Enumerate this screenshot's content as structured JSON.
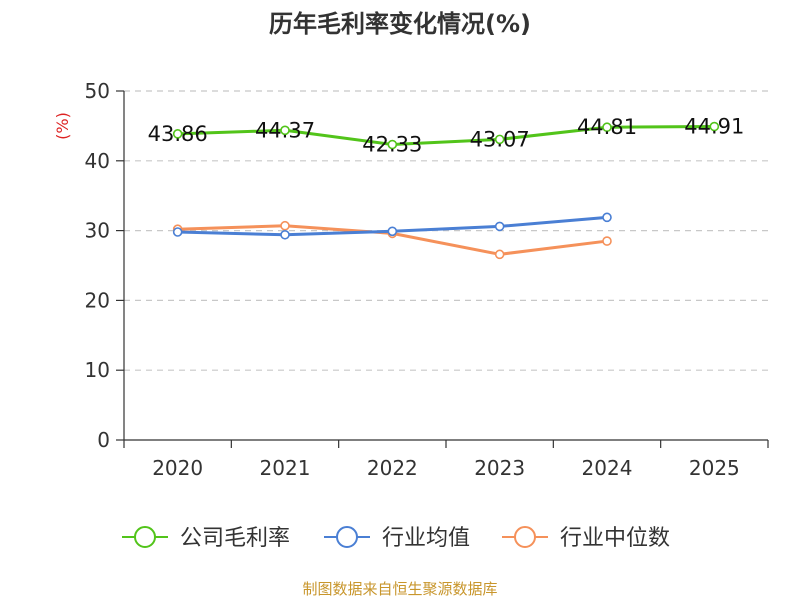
{
  "chart_data": {
    "type": "line",
    "title": "历年毛利率变化情况(%)",
    "ylabel": "(%)",
    "xlabel": "",
    "categories": [
      "2020",
      "2021",
      "2022",
      "2023",
      "2024",
      "2025"
    ],
    "ylim": [
      0,
      50
    ],
    "yticks": [
      0,
      10,
      20,
      30,
      40,
      50
    ],
    "grid": true,
    "legend_position": "bottom",
    "series": [
      {
        "name": "公司毛利率",
        "color": "#52c41a",
        "values": [
          43.86,
          44.37,
          42.33,
          43.07,
          44.81,
          44.91
        ],
        "labels": [
          "43.86",
          "44.37",
          "42.33",
          "43.07",
          "44.81",
          "44.91"
        ]
      },
      {
        "name": "行业均值",
        "color": "#4a7fd4",
        "values": [
          29.8,
          29.4,
          29.9,
          30.6,
          31.9,
          null
        ]
      },
      {
        "name": "行业中位数",
        "color": "#f5915a",
        "values": [
          30.2,
          30.7,
          29.6,
          26.6,
          28.5,
          null
        ]
      }
    ]
  },
  "footer": {
    "source": "制图数据来自恒生聚源数据库",
    "source_color": "#c8962c"
  },
  "ylabel_color": "#dd2222"
}
